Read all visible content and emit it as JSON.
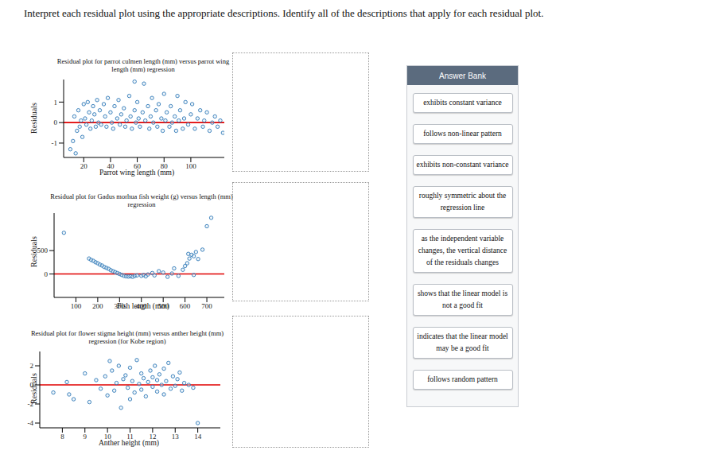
{
  "question": "Interpret each residual plot using the appropriate descriptions. Identify all of the descriptions that apply for each residual plot.",
  "answer_bank": {
    "title": "Answer Bank",
    "items": [
      "exhibits constant variance",
      "follows non-linear pattern",
      "exhibits non-constant variance",
      "roughly symmetric about the regression line",
      "as the independent variable changes, the vertical distance of the residuals changes",
      "shows that the linear model is not a good fit",
      "indicates that the linear model may be a good fit",
      "follows random pattern"
    ]
  },
  "chart_data": [
    {
      "type": "scatter",
      "title": "Residual plot for parrot culmen length (mm) versus parrot wing length (mm) regression",
      "x_label": "Parrot wing length (mm)",
      "y_label": "Residuals",
      "color": "#2f78b7",
      "marker": "circle",
      "hline": 0,
      "xlim": [
        5,
        125
      ],
      "ylim": [
        -1.7,
        2.1
      ],
      "xticks": [
        20,
        40,
        60,
        80,
        100
      ],
      "yticks": [
        -1,
        0,
        1
      ],
      "x": [
        10,
        12,
        13,
        14,
        15,
        16,
        17,
        18,
        19,
        20,
        21,
        22,
        23,
        24,
        25,
        26,
        27,
        28,
        29,
        30,
        31,
        32,
        33,
        35,
        36,
        37,
        38,
        40,
        41,
        42,
        43,
        45,
        46,
        47,
        48,
        50,
        51,
        52,
        54,
        55,
        56,
        58,
        58,
        59,
        60,
        61,
        62,
        64,
        65,
        66,
        68,
        69,
        70,
        71,
        72,
        74,
        75,
        76,
        78,
        79,
        80,
        81,
        82,
        84,
        85,
        86,
        88,
        89,
        90,
        91,
        92,
        94,
        95,
        96,
        98,
        100,
        101,
        103,
        105,
        107,
        109,
        110,
        112,
        114,
        116,
        118,
        120,
        122,
        124
      ],
      "values": [
        -1.3,
        -0.9,
        0.3,
        -1.5,
        -0.4,
        0.6,
        -0.2,
        0.1,
        -0.7,
        0.9,
        0.2,
        -0.1,
        1.0,
        0.5,
        -0.3,
        0.1,
        0.8,
        0.4,
        -0.2,
        1.1,
        0.0,
        0.6,
        -0.1,
        0.9,
        0.3,
        -0.2,
        1.2,
        0.5,
        0.0,
        -0.3,
        0.8,
        0.2,
        1.1,
        -0.1,
        0.4,
        0.7,
        -0.2,
        0.1,
        1.3,
        0.3,
        -0.3,
        0.6,
        2.0,
        0.0,
        1.0,
        0.2,
        -0.2,
        0.5,
        1.9,
        0.1,
        0.8,
        -0.3,
        0.3,
        1.2,
        0.0,
        0.6,
        -0.2,
        0.9,
        0.2,
        -0.4,
        1.4,
        0.1,
        0.5,
        -0.2,
        0.8,
        0.0,
        0.3,
        -0.4,
        1.3,
        0.1,
        0.6,
        -0.3,
        0.2,
        1.0,
        -0.1,
        0.4,
        0.9,
        -0.3,
        0.2,
        0.6,
        -0.2,
        0.1,
        0.5,
        -0.4,
        0.0,
        0.3,
        -0.2,
        0.1,
        -0.5
      ]
    },
    {
      "type": "scatter",
      "title": "Residual plot for Gadus morhua fish weight (g) versus length (mm) regression",
      "x_label": "Fish length (mm)",
      "y_label": "Residuals",
      "color": "#2f78b7",
      "marker": "circle",
      "hline": 0,
      "xlim": [
        0,
        780
      ],
      "ylim": [
        -500,
        1300
      ],
      "xticks": [
        100,
        200,
        300,
        400,
        500,
        600,
        700
      ],
      "yticks": [
        0,
        500
      ],
      "x": [
        45,
        160,
        170,
        180,
        190,
        200,
        210,
        220,
        230,
        240,
        250,
        260,
        270,
        280,
        290,
        300,
        310,
        320,
        330,
        340,
        350,
        360,
        370,
        380,
        400,
        410,
        420,
        430,
        450,
        460,
        480,
        500,
        520,
        540,
        550,
        570,
        590,
        600,
        610,
        615,
        620,
        630,
        640,
        640,
        650,
        660,
        680,
        700,
        720
      ],
      "values": [
        880,
        330,
        300,
        280,
        250,
        230,
        200,
        180,
        150,
        130,
        110,
        80,
        60,
        40,
        20,
        0,
        -20,
        -40,
        -50,
        -55,
        -50,
        -60,
        -40,
        -30,
        -40,
        -20,
        -50,
        -10,
        20,
        -30,
        60,
        30,
        -60,
        10,
        120,
        -40,
        90,
        170,
        230,
        430,
        330,
        410,
        380,
        -20,
        470,
        320,
        520,
        1020,
        1200
      ]
    },
    {
      "type": "scatter",
      "title": "Residual plot for flower stigma height (mm) versus anther height (mm) regression (for Kobe region)",
      "x_label": "Anther height (mm)",
      "y_label": "Residuals",
      "color": "#2f78b7",
      "marker": "circle",
      "hline": 0,
      "xlim": [
        7,
        15
      ],
      "ylim": [
        -4.5,
        3.5
      ],
      "xticks": [
        8,
        9,
        10,
        11,
        12,
        13,
        14
      ],
      "yticks": [
        -4,
        -2,
        0,
        2
      ],
      "x": [
        7.6,
        8.2,
        8.3,
        8.5,
        9.0,
        9.2,
        9.5,
        9.7,
        9.9,
        10.0,
        10.1,
        10.2,
        10.3,
        10.4,
        10.5,
        10.6,
        10.7,
        10.8,
        10.9,
        11.0,
        11.0,
        11.1,
        11.2,
        11.3,
        11.4,
        11.5,
        11.5,
        11.6,
        11.7,
        11.8,
        11.9,
        12.0,
        12.0,
        12.1,
        12.2,
        12.2,
        12.3,
        12.4,
        12.5,
        12.5,
        12.6,
        12.7,
        12.8,
        12.9,
        13.0,
        13.1,
        13.2,
        13.3,
        13.4,
        13.6,
        13.8,
        14.0
      ],
      "values": [
        -0.8,
        0.3,
        -1.0,
        -1.5,
        1.2,
        -1.8,
        0.5,
        -0.4,
        0.9,
        -1.1,
        2.5,
        1.5,
        -0.6,
        0.2,
        2.0,
        -2.4,
        0.6,
        1.0,
        -0.3,
        1.8,
        -1.5,
        0.4,
        -0.8,
        2.6,
        0.1,
        -0.5,
        1.2,
        0.7,
        -1.2,
        0.3,
        1.5,
        -0.2,
        0.8,
        2.0,
        0.5,
        -0.7,
        1.1,
        0.0,
        1.7,
        -1.0,
        0.4,
        2.3,
        -0.4,
        0.9,
        -0.1,
        0.6,
        1.3,
        -0.6,
        0.2,
        0.0,
        -0.3,
        -4.0
      ]
    }
  ]
}
